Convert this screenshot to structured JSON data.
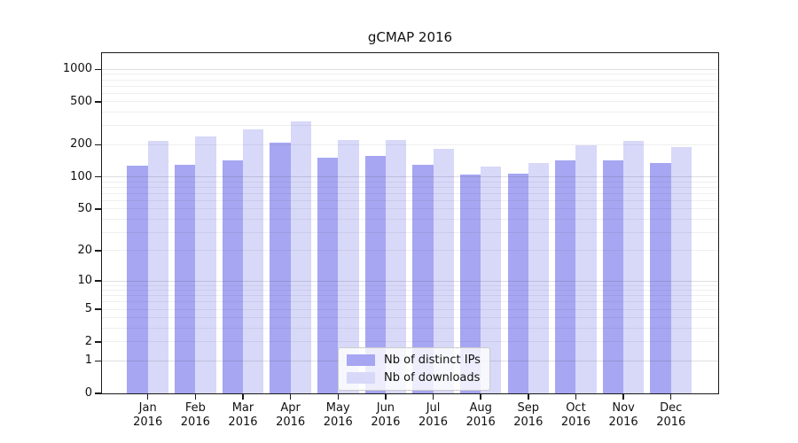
{
  "chart_data": {
    "type": "bar",
    "title": "gCMAP 2016",
    "year": "2016",
    "months": [
      "Jan",
      "Feb",
      "Mar",
      "Apr",
      "May",
      "Jun",
      "Jul",
      "Aug",
      "Sep",
      "Oct",
      "Nov",
      "Dec"
    ],
    "categories": [
      "Jan 2016",
      "Feb 2016",
      "Mar 2016",
      "Apr 2016",
      "May 2016",
      "Jun 2016",
      "Jul 2016",
      "Aug 2016",
      "Sep 2016",
      "Oct 2016",
      "Nov 2016",
      "Dec 2016"
    ],
    "series": [
      {
        "key": "ips",
        "name": "Nb of distinct IPs",
        "color": "#a6a6f2",
        "values": [
          128,
          131,
          143,
          210,
          151,
          156,
          130,
          106,
          107,
          142,
          144,
          135
        ]
      },
      {
        "key": "downloads",
        "name": "Nb of downloads",
        "color": "#d8d8f9",
        "values": [
          218,
          238,
          275,
          331,
          220,
          223,
          183,
          126,
          134,
          197,
          218,
          191
        ]
      }
    ],
    "xlabel": "",
    "ylabel": "",
    "yscale": "log1p",
    "y_ticks": [
      0,
      1,
      2,
      5,
      10,
      20,
      50,
      100,
      200,
      500,
      1000
    ],
    "y_minor_ticks": [
      2,
      3,
      4,
      5,
      6,
      7,
      8,
      9,
      20,
      30,
      40,
      50,
      60,
      70,
      80,
      90,
      200,
      300,
      400,
      500,
      600,
      700,
      800,
      900
    ],
    "y_major_gridlines": [
      1,
      10,
      100,
      1000
    ],
    "ylim": [
      0,
      1410
    ],
    "grid": true,
    "legend_position": "lower center"
  }
}
